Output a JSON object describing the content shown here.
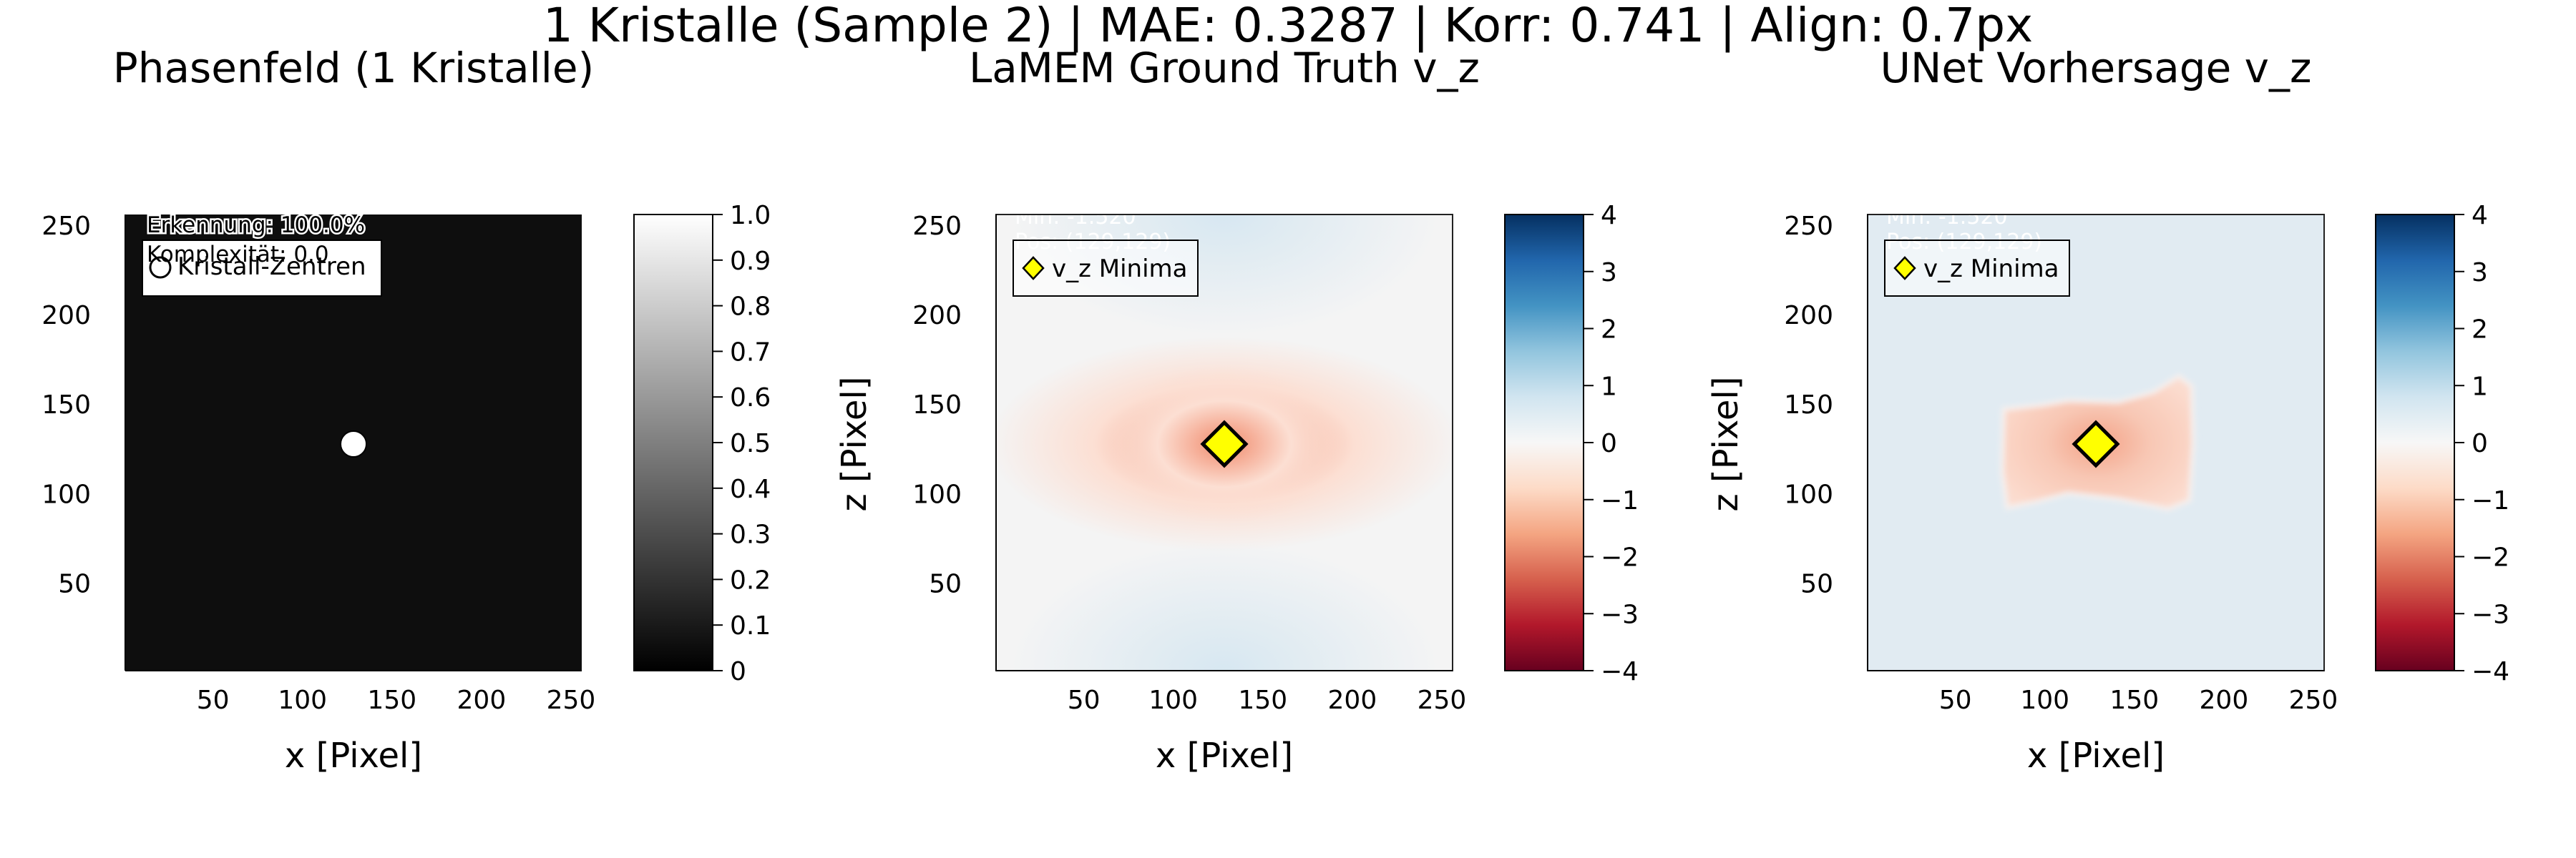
{
  "suptitle": "1 Kristalle (Sample 2) | MAE: 0.3287 | Korr: 0.741 | Align: 0.7px",
  "panels": {
    "phase": {
      "title": "Phasenfeld (1 Kristalle)",
      "xlabel": "x [Pixel]",
      "ylabel": "",
      "overlay_line1": "Erkennung: 100.0%",
      "overlay_line2": "Komplexität: 0.0",
      "legend_label": "Kristall-Zentren",
      "colorbar": {
        "colormap": "grays",
        "ticks": [
          "0",
          "0.1",
          "0.2",
          "0.3",
          "0.4",
          "0.5",
          "0.6",
          "0.7",
          "0.8",
          "0.9",
          "1.0"
        ]
      }
    },
    "truth": {
      "title": "LaMEM Ground Truth v_z",
      "xlabel": "x [Pixel]",
      "ylabel": "z [Pixel]",
      "overlay_line1": "Min: -1.520",
      "overlay_line2": "Pos: (129,129)",
      "legend_label": "v_z Minima",
      "colorbar": {
        "colormap": "RdBu",
        "ticks": [
          "−4",
          "−3",
          "−2",
          "−1",
          "0",
          "1",
          "2",
          "3",
          "4"
        ]
      }
    },
    "pred": {
      "title": "UNet Vorhersage v_z",
      "xlabel": "x [Pixel]",
      "ylabel": "z [Pixel]",
      "overlay_line1": "Min: -1.520",
      "overlay_line2": "Pos: (129,129)",
      "legend_label": "v_z Minima",
      "colorbar": {
        "colormap": "RdBu",
        "ticks": [
          "−4",
          "−3",
          "−2",
          "−1",
          "0",
          "1",
          "2",
          "3",
          "4"
        ]
      }
    }
  },
  "chart_data": [
    {
      "type": "heatmap",
      "title": "Phasenfeld (1 Kristalle)",
      "xlabel": "x [Pixel]",
      "ylabel": "",
      "xlim": [
        1,
        256
      ],
      "ylim": [
        1,
        256
      ],
      "x_ticks": [
        50,
        100,
        150,
        200,
        250
      ],
      "y_ticks": [
        50,
        100,
        150,
        200,
        250
      ],
      "colorbar_range": [
        0,
        1
      ],
      "background_value": 0.05,
      "points": [
        {
          "name": "Kristall-Zentren",
          "x": 128,
          "y": 128,
          "marker": "circle",
          "color": "#ffffff"
        }
      ],
      "legend": "top-left"
    },
    {
      "type": "heatmap",
      "title": "LaMEM Ground Truth v_z",
      "xlabel": "x [Pixel]",
      "ylabel": "z [Pixel]",
      "xlim": [
        1,
        256
      ],
      "ylim": [
        1,
        256
      ],
      "x_ticks": [
        50,
        100,
        150,
        200,
        250
      ],
      "y_ticks": [
        50,
        100,
        150,
        200,
        250
      ],
      "colorbar_range": [
        -4,
        4
      ],
      "field": {
        "kind": "sinker",
        "min_value": -1.52,
        "center": [
          128,
          128
        ],
        "halo_value": 0.25
      },
      "points": [
        {
          "name": "v_z Minima",
          "x": 128,
          "y": 128,
          "marker": "diamond",
          "color": "#ffff00"
        }
      ],
      "legend": "top-left"
    },
    {
      "type": "heatmap",
      "title": "UNet Vorhersage v_z",
      "xlabel": "x [Pixel]",
      "ylabel": "z [Pixel]",
      "xlim": [
        1,
        256
      ],
      "ylim": [
        1,
        256
      ],
      "x_ticks": [
        50,
        100,
        150,
        200,
        250
      ],
      "y_ticks": [
        50,
        100,
        150,
        200,
        250
      ],
      "colorbar_range": [
        -4,
        4
      ],
      "field": {
        "kind": "blob",
        "min_value": -1.52,
        "center": [
          128,
          128
        ],
        "background_value": 0.3
      },
      "points": [
        {
          "name": "v_z Minima",
          "x": 128,
          "y": 128,
          "marker": "diamond",
          "color": "#ffff00"
        }
      ],
      "legend": "top-left"
    }
  ]
}
